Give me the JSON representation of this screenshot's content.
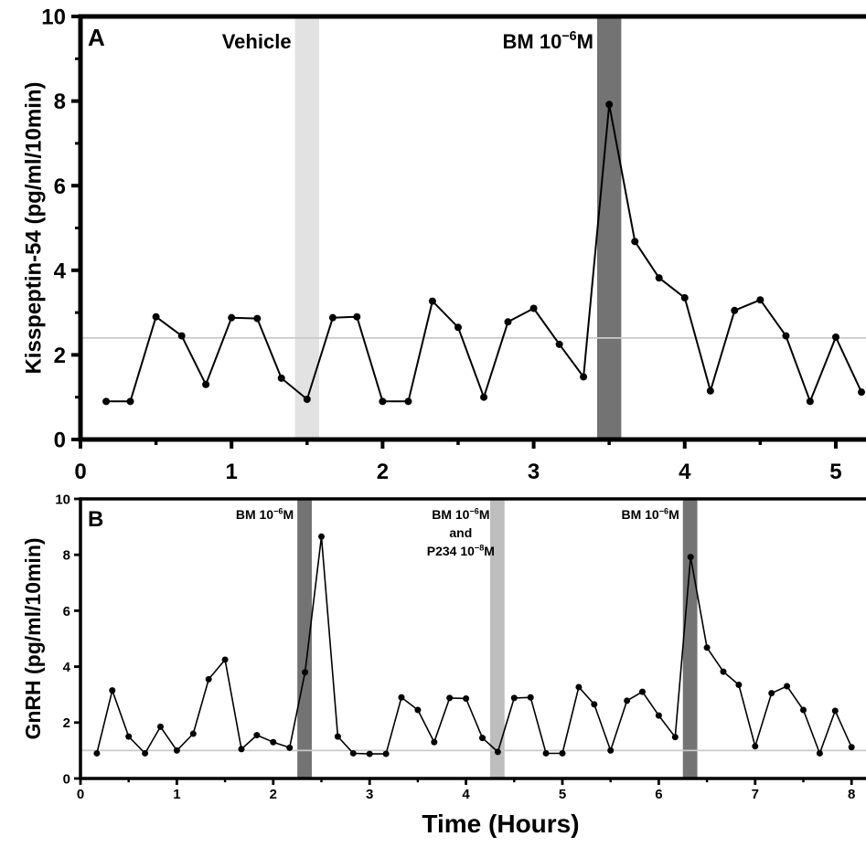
{
  "chart_data": [
    {
      "panel_label": "A",
      "type": "line",
      "ylabel": "Kisspeptin-54 (pg/ml/10min)",
      "xlabel": "",
      "xlim": [
        0,
        5.2
      ],
      "ylim": [
        0,
        10
      ],
      "x_ticks": [
        0,
        1,
        2,
        3,
        4,
        5
      ],
      "y_ticks": [
        0,
        2,
        4,
        6,
        8,
        10
      ],
      "threshold": 2.4,
      "series": [
        {
          "x": [
            0.17,
            0.33,
            0.5,
            0.67,
            0.83,
            1.0,
            1.17,
            1.33,
            1.5,
            1.67,
            1.83,
            2.0,
            2.17,
            2.33,
            2.5,
            2.67,
            2.83,
            3.0,
            3.17,
            3.33,
            3.5,
            3.67,
            3.83,
            4.0,
            4.17,
            4.33,
            4.5,
            4.67,
            4.83,
            5.0,
            5.17
          ],
          "y": [
            0.9,
            0.9,
            2.9,
            2.45,
            1.3,
            2.88,
            2.86,
            1.45,
            0.95,
            2.88,
            2.9,
            0.9,
            0.9,
            3.27,
            2.65,
            1.0,
            2.78,
            3.1,
            2.25,
            1.48,
            7.92,
            4.68,
            3.82,
            3.35,
            1.15,
            3.05,
            3.3,
            2.45,
            0.9,
            2.42,
            1.12
          ]
        }
      ],
      "treatments": [
        {
          "start": 1.42,
          "end": 1.58,
          "label": "Vehicle",
          "label_sup": "",
          "label_tail": "",
          "label2": "",
          "label2_sup": "",
          "label2_tail": "",
          "color": "#e2e2e2"
        },
        {
          "start": 3.42,
          "end": 3.58,
          "label": "BM 10",
          "label_sup": "−6",
          "label_tail": "M",
          "label2": "",
          "label2_sup": "",
          "label2_tail": "",
          "color": "#737373"
        }
      ]
    },
    {
      "panel_label": "B",
      "type": "line",
      "ylabel": "GnRH (pg/ml/10min)",
      "xlabel": "Time (Hours)",
      "xlim": [
        0,
        8.15
      ],
      "ylim": [
        0,
        10
      ],
      "x_ticks": [
        0,
        1,
        2,
        3,
        4,
        5,
        6,
        7,
        8
      ],
      "y_ticks": [
        0,
        2,
        4,
        6,
        8,
        10
      ],
      "threshold": 1.0,
      "series": [
        {
          "x": [
            0.17,
            0.33,
            0.5,
            0.67,
            0.83,
            1.0,
            1.17,
            1.33,
            1.5,
            1.67,
            1.83,
            2.0,
            2.17,
            2.33,
            2.5,
            2.67,
            2.83,
            3.0,
            3.17,
            3.33,
            3.5,
            3.67,
            3.83,
            4.0,
            4.17,
            4.33,
            4.5,
            4.67,
            4.83,
            5.0,
            5.17,
            5.33,
            5.5,
            5.67,
            5.83,
            6.0,
            6.17,
            6.33,
            6.5,
            6.67,
            6.83,
            7.0,
            7.17,
            7.33,
            7.5,
            7.67,
            7.83,
            8.0
          ],
          "y": [
            0.9,
            3.15,
            1.5,
            0.9,
            1.85,
            1.0,
            1.6,
            3.55,
            4.25,
            1.05,
            1.55,
            1.3,
            1.1,
            3.8,
            8.65,
            1.5,
            0.9,
            0.88,
            0.88,
            2.9,
            2.45,
            1.3,
            2.88,
            2.86,
            1.45,
            0.95,
            2.88,
            2.9,
            0.9,
            0.9,
            3.27,
            2.65,
            1.0,
            2.78,
            3.1,
            2.25,
            1.48,
            7.92,
            4.68,
            3.82,
            3.35,
            1.15,
            3.05,
            3.3,
            2.45,
            0.9,
            2.42,
            1.12
          ]
        }
      ],
      "treatments": [
        {
          "start": 2.25,
          "end": 2.4,
          "label": "BM 10",
          "label_sup": "−6",
          "label_tail": "M",
          "label2": "",
          "label2_sup": "",
          "label2_tail": "",
          "color": "#737373"
        },
        {
          "start": 4.25,
          "end": 4.4,
          "label": "BM 10",
          "label_sup": "−6",
          "label_tail": "M",
          "label_mid": "and",
          "label2": "P234 10",
          "label2_sup": "−8",
          "label2_tail": "M",
          "color": "#bdbdbd"
        },
        {
          "start": 6.25,
          "end": 6.4,
          "label": "BM 10",
          "label_sup": "−6",
          "label_tail": "M",
          "label2": "",
          "label2_sup": "",
          "label2_tail": "",
          "color": "#737373"
        }
      ]
    }
  ]
}
